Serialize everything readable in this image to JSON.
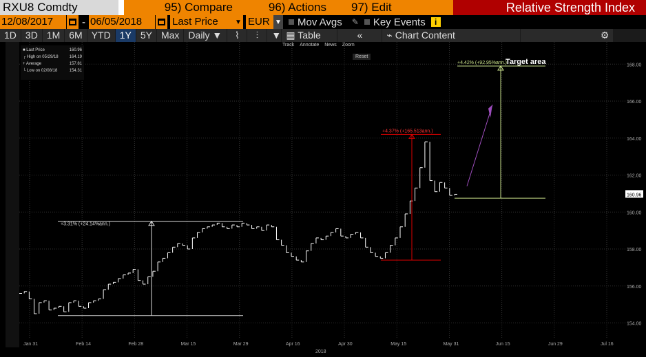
{
  "header": {
    "ticker": "RXU8 Comdty",
    "compare": "95) Compare",
    "actions": "96) Actions",
    "edit": "97) Edit",
    "title": "Relative Strength Index"
  },
  "controls": {
    "start_date": "12/08/2017",
    "end_date": "06/05/2018",
    "field": "Last Price",
    "currency": "EUR",
    "mov_avgs": "Mov Avgs",
    "key_events": "Key Events"
  },
  "periods": [
    "1D",
    "3D",
    "1M",
    "6M",
    "YTD",
    "1Y",
    "5Y",
    "Max"
  ],
  "active_period": "1Y",
  "frequency": "Daily",
  "table_label": "Table",
  "chart_content_label": "Chart Content",
  "legend": {
    "last_price_label": "Last Price",
    "last_price_value": "160.96",
    "high_label": "High on 05/29/18",
    "high_value": "164.19",
    "avg_label": "Average",
    "avg_value": "157.81",
    "low_label": "Low on 02/08/18",
    "low_value": "154.31"
  },
  "chart_toolbar": [
    "Track",
    "Annotate",
    "News",
    "Zoom"
  ],
  "reset_label": "Reset",
  "annotations": {
    "target_area": "Target area",
    "a1": "+3.31% (+24.14%ann.)",
    "a2": "+4.37% (+165.513ann.)",
    "a3": "+4.42% (+92.95%ann.)"
  },
  "chart_data": {
    "type": "line",
    "title": "",
    "xlabel": "2018",
    "ylabel": "",
    "ylim": [
      153.2,
      169.2
    ],
    "y_ticks": [
      "154.00",
      "156.00",
      "158.00",
      "160.00",
      "162.00",
      "164.00",
      "166.00",
      "168.00"
    ],
    "x_ticks": [
      "Jan 31",
      "Feb 14",
      "Feb 28",
      "Mar 15",
      "Mar 29",
      "Apr 16",
      "Apr 30",
      "May 15",
      "May 31",
      "Jun 15",
      "Jun 29",
      "Jul 16"
    ],
    "last_price_label": "160.96",
    "series": [
      {
        "values": [
          155.6,
          155.7,
          155.3,
          154.5,
          155.1,
          155.2,
          154.7,
          154.8,
          154.9,
          154.6,
          155.1,
          155.2,
          154.9,
          154.8,
          155.1,
          155.2,
          155.3,
          155.8,
          156.1,
          156.2,
          156.4,
          156.6,
          156.7,
          156.9,
          156.3,
          156.1,
          156.5,
          156.8,
          157.3,
          157.5,
          157.8,
          158.1,
          158.3,
          158.2,
          158.0,
          158.6,
          158.9,
          159.1,
          159.2,
          159.3,
          159.4,
          159.2,
          159.1,
          159.3,
          159.2,
          159.4,
          159.3,
          159.1,
          159.2,
          159.0,
          159.3,
          159.2,
          158.5,
          158.2,
          157.8,
          157.6,
          157.4,
          157.3,
          157.9,
          158.3,
          158.6,
          158.5,
          158.7,
          158.9,
          159.1,
          158.7,
          158.6,
          158.8,
          158.9,
          158.6,
          158.1,
          157.8,
          157.6,
          157.5,
          157.8,
          158.2,
          158.6,
          159.2,
          159.9,
          160.6,
          161.3,
          162.4,
          163.8,
          161.7,
          161.1,
          161.6,
          161.3,
          160.9,
          160.96
        ]
      }
    ]
  }
}
